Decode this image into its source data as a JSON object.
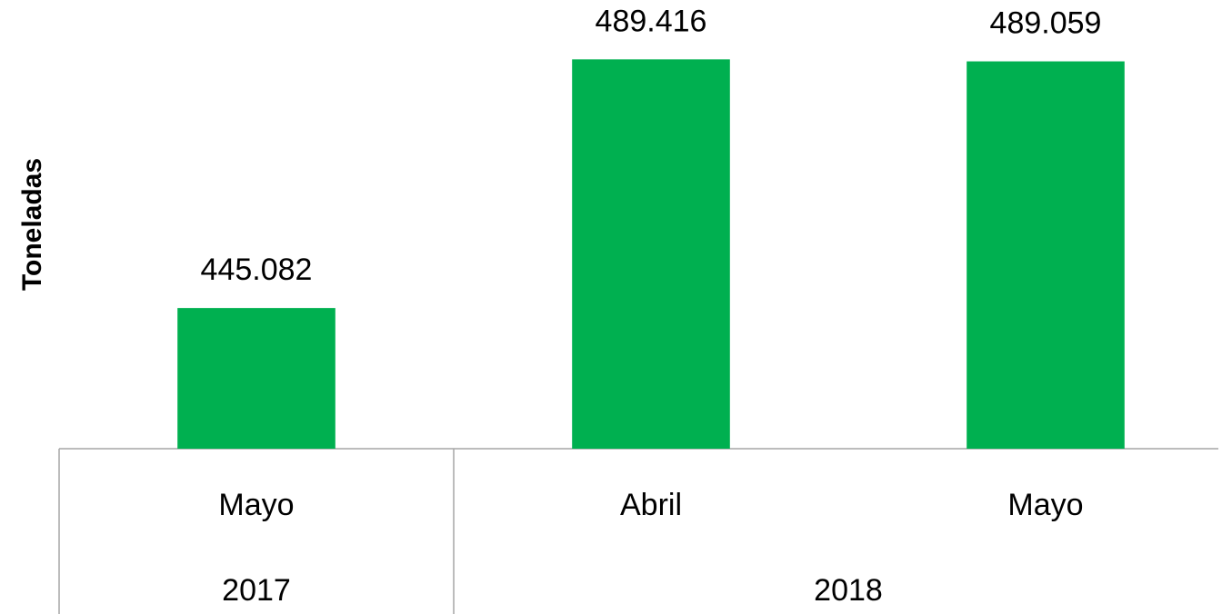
{
  "chart_data": {
    "type": "bar",
    "y_label": "Toneladas",
    "categories": [
      "Mayo",
      "Abril",
      "Mayo"
    ],
    "groups": [
      {
        "name": "2017",
        "count": 1
      },
      {
        "name": "2018",
        "count": 2
      }
    ],
    "values": [
      445082,
      489416,
      489059
    ],
    "value_labels": [
      "445.082",
      "489.416",
      "489.059"
    ],
    "color": "#00b050",
    "ylim": [
      420000,
      500000
    ]
  }
}
